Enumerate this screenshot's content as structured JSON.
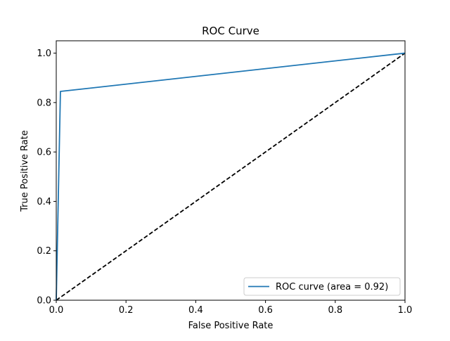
{
  "chart_data": {
    "type": "line",
    "title": "ROC Curve",
    "xlabel": "False Positive Rate",
    "ylabel": "True Positive Rate",
    "xlim": [
      0.0,
      1.0
    ],
    "ylim": [
      0.0,
      1.05
    ],
    "x_ticks": [
      0.0,
      0.2,
      0.4,
      0.6,
      0.8,
      1.0
    ],
    "y_ticks": [
      0.0,
      0.2,
      0.4,
      0.6,
      0.8,
      1.0
    ],
    "x_tick_labels": [
      "0.0",
      "0.2",
      "0.4",
      "0.6",
      "0.8",
      "1.0"
    ],
    "y_tick_labels": [
      "0.0",
      "0.2",
      "0.4",
      "0.6",
      "0.8",
      "1.0"
    ],
    "grid": false,
    "legend_position": "lower-right",
    "series": [
      {
        "name": "ROC curve (area = 0.92)",
        "color": "#1f77b4",
        "line_style": "solid",
        "x": [
          0.0,
          0.012,
          1.0
        ],
        "y": [
          0.0,
          0.845,
          1.0
        ]
      },
      {
        "color": "#000000",
        "line_style": "dashed",
        "x": [
          0.0,
          1.0
        ],
        "y": [
          0.0,
          1.0
        ]
      }
    ]
  }
}
